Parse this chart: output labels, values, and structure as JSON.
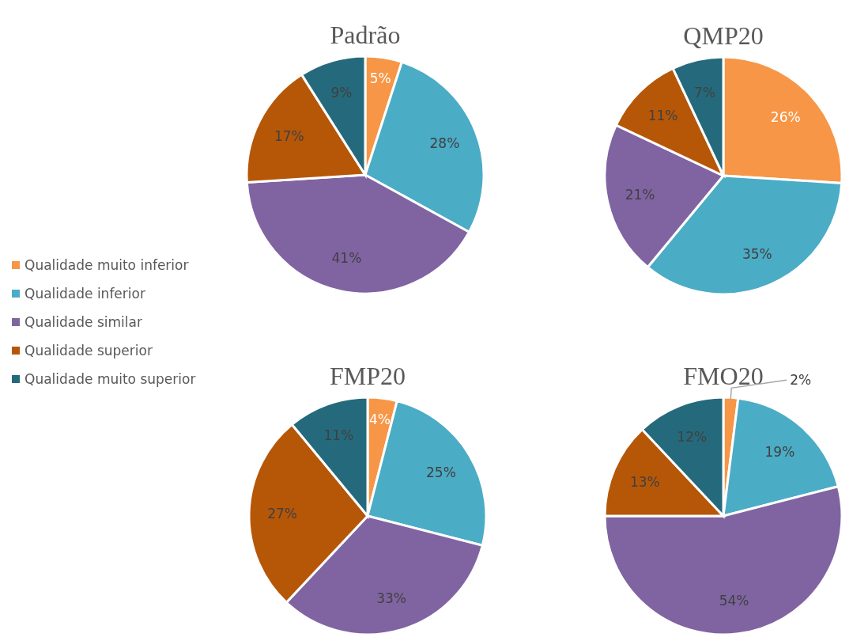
{
  "chart_data": [
    {
      "type": "pie",
      "title": "Padrão",
      "legend": "left",
      "categories": [
        "Qualidade muito inferior",
        "Qualidade inferior",
        "Qualidade similar",
        "Qualidade superior",
        "Qualidade muito superior"
      ],
      "values": [
        5,
        28,
        41,
        17,
        9
      ],
      "value_labels": [
        "5%",
        "28%",
        "41%",
        "17%",
        "9%"
      ],
      "colors": [
        "#f79646",
        "#4bacc6",
        "#8064a2",
        "#b65708",
        "#256a7c"
      ]
    },
    {
      "type": "pie",
      "title": "QMP20",
      "categories": [
        null,
        null,
        null,
        null,
        null
      ],
      "values": [
        26,
        35,
        21,
        11,
        7
      ],
      "value_labels": [
        "26%",
        "35%",
        "21%",
        "11%",
        "7%"
      ],
      "colors": [
        "#f79646",
        "#4bacc6",
        "#8064a2",
        "#b65708",
        "#256a7c"
      ]
    },
    {
      "type": "pie",
      "title": "FMP20",
      "categories": [
        null,
        null,
        null,
        null,
        null
      ],
      "values": [
        4,
        25,
        33,
        27,
        11
      ],
      "value_labels": [
        "4%",
        "25%",
        "33%",
        "27%",
        "11%"
      ],
      "colors": [
        "#f79646",
        "#4bacc6",
        "#8064a2",
        "#b65708",
        "#256a7c"
      ]
    },
    {
      "type": "pie",
      "title": "FMO20",
      "categories": [
        null,
        null,
        null,
        null,
        null
      ],
      "values": [
        2,
        19,
        54,
        13,
        12
      ],
      "value_labels": [
        "2%",
        "19%",
        "54%",
        "13%",
        "12%"
      ],
      "colors": [
        "#f79646",
        "#4bacc6",
        "#8064a2",
        "#b65708",
        "#256a7c"
      ]
    }
  ]
}
